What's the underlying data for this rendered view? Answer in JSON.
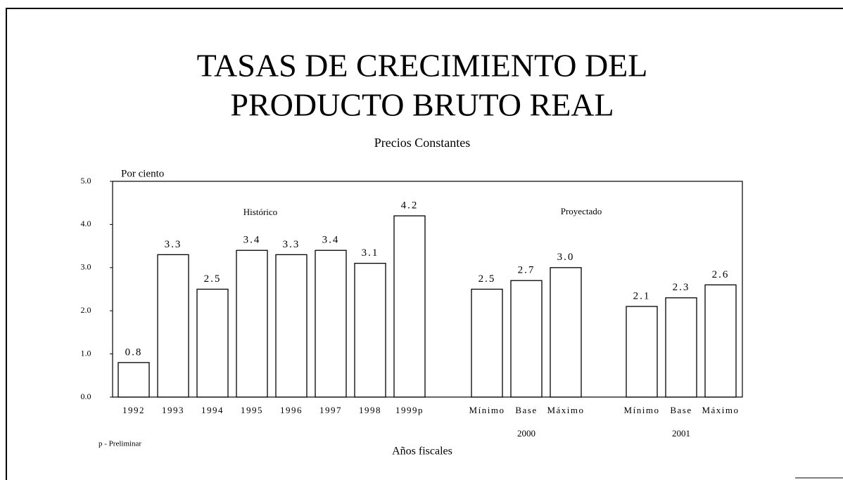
{
  "chart_data": {
    "type": "bar",
    "title": [
      "TASAS DE CRECIMIENTO DEL",
      "PRODUCTO BRUTO REAL"
    ],
    "subtitle": "Precios Constantes",
    "y_label": "Por ciento",
    "x_label": "Años fiscales",
    "annotations": [
      "Histórico",
      "Proyectado",
      "p - Preliminar"
    ],
    "categories": [
      "1992",
      "1993",
      "1994",
      "1995",
      "1996",
      "1997",
      "1998",
      "1999p",
      "Mínimo",
      "Base",
      "Máximo",
      "Mínimo",
      "Base",
      "Máximo"
    ],
    "group_labels": [
      "2000",
      "2001"
    ],
    "values": [
      0.8,
      3.3,
      2.5,
      3.4,
      3.3,
      3.4,
      3.1,
      4.2,
      2.5,
      2.7,
      3.0,
      2.1,
      2.3,
      2.6
    ],
    "value_labels": [
      "0.8",
      "3.3",
      "2.5",
      "3.4",
      "3.3",
      "3.4",
      "3.1",
      "4.2",
      "2.5",
      "2.7",
      "3.0",
      "2.1",
      "2.3",
      "2.6"
    ],
    "color": "#ffffff",
    "ylim": [
      0,
      5
    ],
    "yticks": [
      {
        "value": 0,
        "label": "0.0"
      },
      {
        "value": 1,
        "label": "1.0"
      },
      {
        "value": 2,
        "label": "2.0"
      },
      {
        "value": 3,
        "label": "3.0"
      },
      {
        "value": 4,
        "label": "4.0"
      },
      {
        "value": 5,
        "label": "5.0"
      }
    ],
    "grid": false
  }
}
